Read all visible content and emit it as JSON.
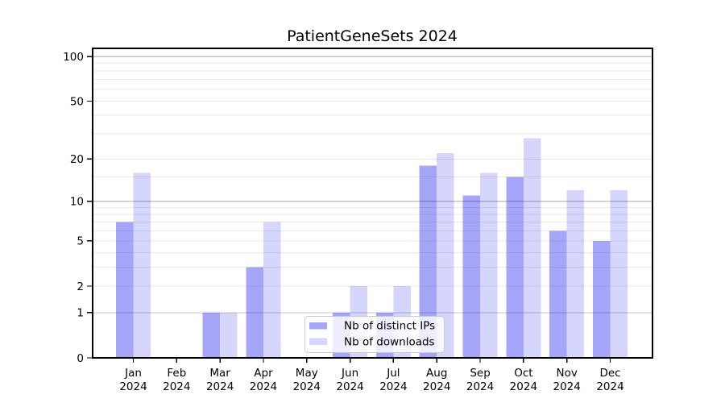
{
  "chart_data": {
    "type": "bar",
    "title": "PatientGeneSets 2024",
    "categories": [
      "Jan",
      "Feb",
      "Mar",
      "Apr",
      "May",
      "Jun",
      "Jul",
      "Aug",
      "Sep",
      "Oct",
      "Nov",
      "Dec"
    ],
    "year_label": "2024",
    "series": [
      {
        "name": "Nb of distinct IPs",
        "color": "#0000EE59",
        "values": [
          7,
          0,
          1,
          3,
          0,
          1,
          1,
          18,
          11,
          15,
          6,
          5
        ]
      },
      {
        "name": "Nb of downloads",
        "color": "#0000EE29",
        "values": [
          16,
          0,
          1,
          7,
          0,
          2,
          2,
          22,
          16,
          28,
          12,
          12
        ]
      }
    ],
    "y_axis": {
      "scale": "log10(value+1)",
      "ticks": [
        0,
        1,
        2,
        5,
        10,
        20,
        50,
        100
      ],
      "major_grid_values": [
        1,
        10,
        100
      ],
      "minor_grid_values": [
        2,
        3,
        4,
        5,
        6,
        7,
        8,
        9,
        15,
        20,
        30,
        40,
        50,
        60,
        70,
        80,
        90
      ],
      "ylim": [
        0,
        114
      ],
      "grid_major_color": "#c4c4c4",
      "grid_minor_color": "#e9e9e9"
    },
    "x_axis": {
      "tick_label_style": "two-line month + year"
    },
    "legend": {
      "position": "lower-center",
      "border_color": "#cccccc",
      "background": "#ffffffcc"
    },
    "frame_color": "#000000",
    "grid": "on"
  }
}
